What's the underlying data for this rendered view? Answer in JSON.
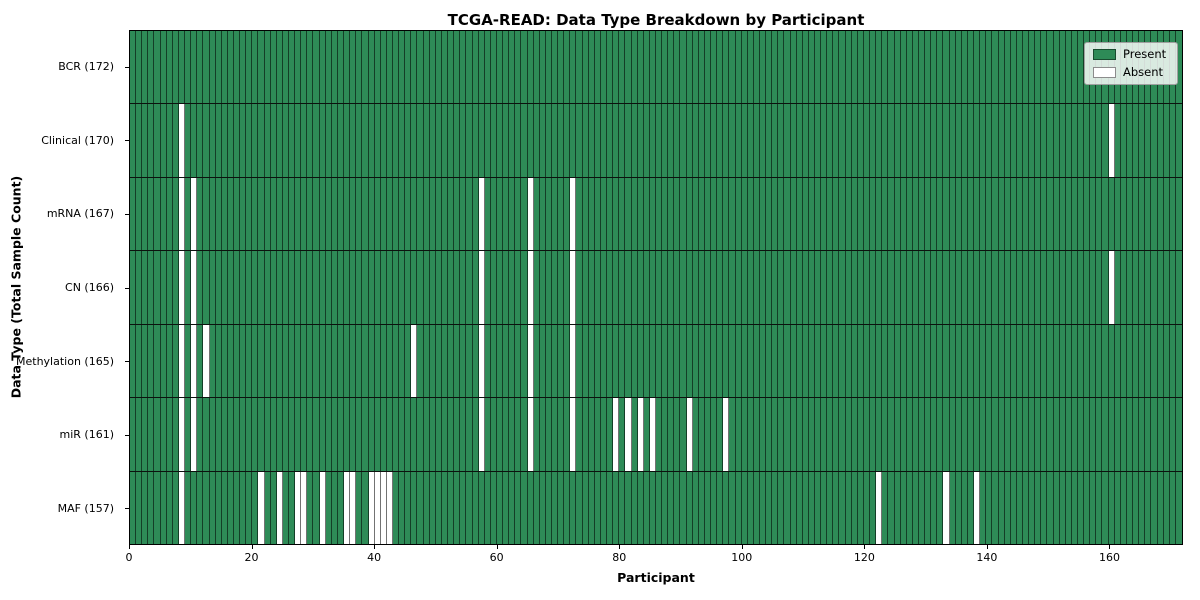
{
  "chart_data": {
    "type": "heatmap",
    "title": "TCGA-READ: Data Type Breakdown by Participant",
    "xlabel": "Participant",
    "ylabel": "Data Type (Total Sample Count)",
    "n_participants": 172,
    "xlim": [
      0,
      172
    ],
    "x_ticks": [
      0,
      20,
      40,
      60,
      80,
      100,
      120,
      140,
      160
    ],
    "grid": "cell-borders",
    "legend_position": "upper right",
    "colors": {
      "present": "#2e8b57",
      "absent": "#ffffff"
    },
    "legend": [
      {
        "label": "Present",
        "color": "#2e8b57"
      },
      {
        "label": "Absent",
        "color": "#ffffff"
      }
    ],
    "rows": [
      {
        "label": "BCR (172)",
        "data_type": "BCR",
        "total_samples": 172,
        "absent_participants": []
      },
      {
        "label": "Clinical (170)",
        "data_type": "Clinical",
        "total_samples": 170,
        "absent_participants": [
          8,
          160
        ]
      },
      {
        "label": "mRNA (167)",
        "data_type": "mRNA",
        "total_samples": 167,
        "absent_participants": [
          8,
          10,
          57,
          65,
          72
        ]
      },
      {
        "label": "CN (166)",
        "data_type": "CN",
        "total_samples": 166,
        "absent_participants": [
          8,
          10,
          57,
          65,
          72,
          160
        ]
      },
      {
        "label": "Methylation (165)",
        "data_type": "Methylation",
        "total_samples": 165,
        "absent_participants": [
          8,
          10,
          12,
          46,
          57,
          65,
          72
        ]
      },
      {
        "label": "miR (161)",
        "data_type": "miR",
        "total_samples": 161,
        "absent_participants": [
          8,
          10,
          57,
          65,
          72,
          79,
          81,
          83,
          85,
          91,
          97
        ]
      },
      {
        "label": "MAF (157)",
        "data_type": "MAF",
        "total_samples": 157,
        "absent_participants": [
          8,
          21,
          24,
          27,
          28,
          31,
          35,
          36,
          39,
          40,
          41,
          42,
          122,
          133,
          138
        ]
      }
    ]
  }
}
